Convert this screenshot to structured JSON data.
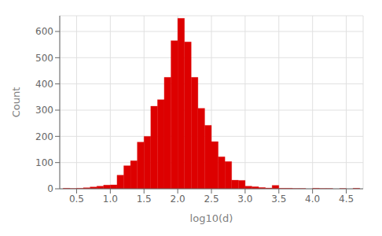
{
  "chart_data": {
    "type": "bar",
    "xlabel": "log10(d)",
    "ylabel": "Count",
    "color": "#dd0000",
    "bin_width": 0.1,
    "xlim": [
      0.25,
      4.75
    ],
    "ylim": [
      0,
      660
    ],
    "xticks": [
      0.5,
      {
        "value": 1,
        "label": "1.0"
      },
      1.5,
      {
        "value": 2,
        "label": "2.0"
      },
      2.5,
      {
        "value": 3,
        "label": "3.0"
      },
      3.5,
      {
        "value": 4,
        "label": "4.0"
      },
      4.5
    ],
    "yticks": [
      0,
      100,
      200,
      300,
      400,
      500,
      600
    ],
    "grid": true,
    "x": [
      0.3,
      0.4,
      0.5,
      0.6,
      0.7,
      0.8,
      0.9,
      1.0,
      1.1,
      1.2,
      1.3,
      1.4,
      1.5,
      1.6,
      1.7,
      1.8,
      1.9,
      2.0,
      2.1,
      2.2,
      2.3,
      2.4,
      2.5,
      2.6,
      2.7,
      2.8,
      2.9,
      3.0,
      3.1,
      3.2,
      3.3,
      3.4,
      3.5,
      3.6,
      3.7,
      3.8,
      4.0,
      4.1,
      4.2,
      4.4,
      4.6
    ],
    "values": [
      2,
      1,
      2,
      4,
      7,
      10,
      14,
      15,
      52,
      88,
      107,
      178,
      200,
      315,
      340,
      425,
      565,
      650,
      560,
      425,
      307,
      242,
      180,
      122,
      104,
      33,
      32,
      10,
      8,
      5,
      3,
      13,
      2,
      2,
      1,
      1,
      2,
      1,
      1,
      1,
      2
    ]
  }
}
